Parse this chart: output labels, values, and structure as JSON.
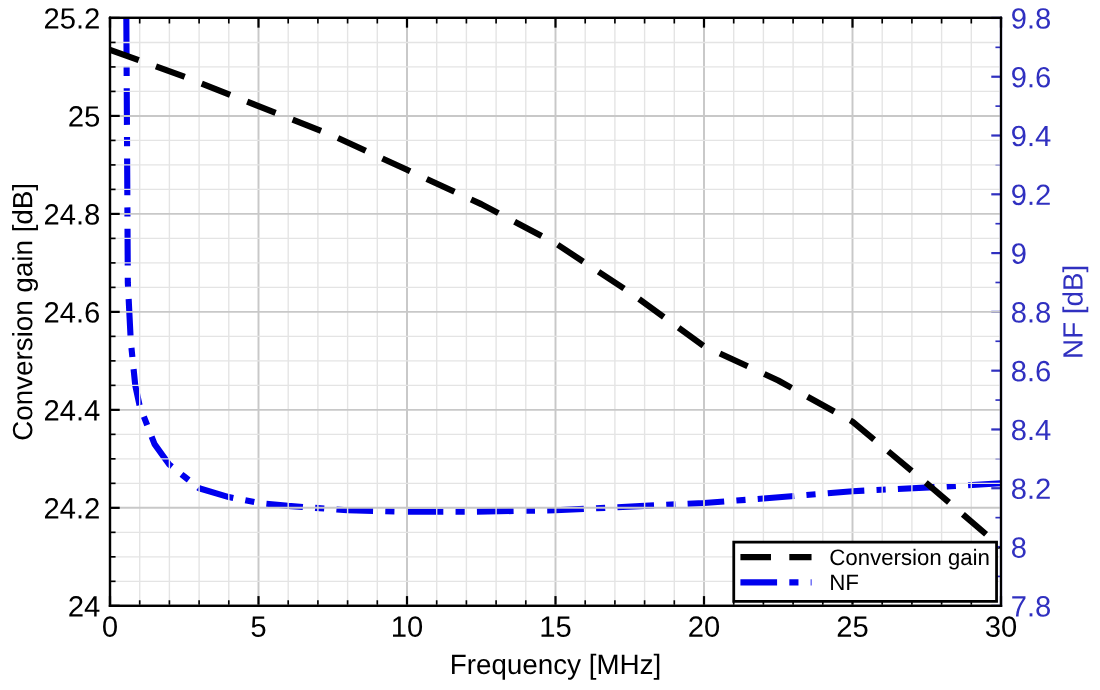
{
  "chart_data": {
    "type": "line",
    "xlabel": "Frequency [MHz]",
    "ylabel": "Conversion gain [dB]",
    "y2label": "NF [dB]",
    "xlim": [
      0,
      30
    ],
    "xticks": [
      0,
      5,
      10,
      15,
      20,
      25,
      30
    ],
    "ylim": [
      24,
      25.2
    ],
    "yticks": [
      24,
      24.2,
      24.4,
      24.6,
      24.8,
      25,
      25.2
    ],
    "y2lim": [
      7.8,
      9.8
    ],
    "y2ticks": [
      7.8,
      8,
      8.2,
      8.4,
      8.6,
      8.8,
      9,
      9.2,
      9.4,
      9.6,
      9.8
    ],
    "grid": true,
    "legend": "bottom right",
    "series": [
      {
        "name": "Conversion gain",
        "color": "#000000",
        "line_style": "dashed",
        "x": [
          0,
          2.5,
          5,
          7.5,
          10,
          12.5,
          15,
          17.5,
          20,
          22.5,
          25,
          27.5,
          30
        ],
        "values": [
          25.135,
          25.08,
          25.02,
          24.96,
          24.89,
          24.82,
          24.74,
          24.64,
          24.53,
          24.46,
          24.376,
          24.25,
          24.12
        ]
      },
      {
        "name": "NF",
        "color": "#0000ee",
        "line_style": "dashdot",
        "axis": "y2",
        "x": [
          0.55,
          0.6,
          0.7,
          0.85,
          1,
          1.5,
          2,
          2.5,
          3,
          4,
          5,
          6,
          8,
          10,
          12,
          15,
          18,
          20,
          22,
          25,
          28,
          30
        ],
        "values": [
          9.8,
          8.9,
          8.7,
          8.55,
          8.48,
          8.35,
          8.28,
          8.24,
          8.2,
          8.17,
          8.15,
          8.14,
          8.125,
          8.12,
          8.12,
          8.125,
          8.14,
          8.15,
          8.165,
          8.19,
          8.205,
          8.217
        ]
      }
    ]
  }
}
